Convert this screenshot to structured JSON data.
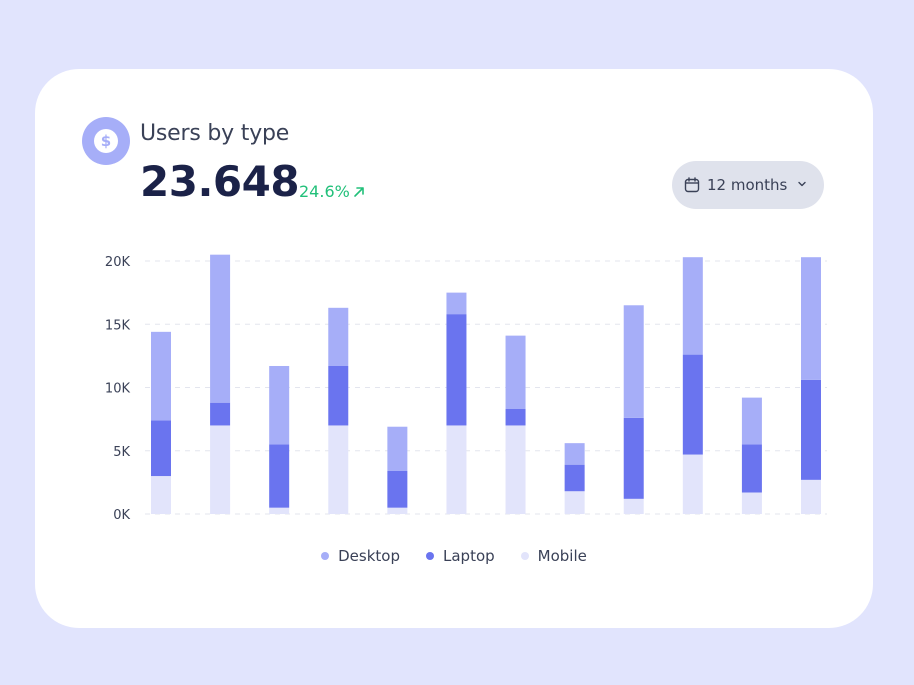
{
  "header": {
    "title": "Users by type",
    "total": "23.648",
    "change": "24.6%",
    "period": "12 months"
  },
  "colors": {
    "desktop": "#a6aef8",
    "laptop": "#6a74ef",
    "mobile": "#e2e4fb",
    "positive": "#22c07a",
    "text": "#3a4157",
    "heading": "#1b2248"
  },
  "icons": {
    "badge": "dollar-icon",
    "period": "calendar-icon",
    "dropdown": "chevron-down-icon",
    "trend": "arrow-up-right-icon"
  },
  "chart_data": {
    "type": "bar",
    "stacked": true,
    "ylim": [
      0,
      20000
    ],
    "yticks": [
      {
        "value": 0,
        "label": "0K"
      },
      {
        "value": 5000,
        "label": "5K"
      },
      {
        "value": 10000,
        "label": "10K"
      },
      {
        "value": 15000,
        "label": "15K"
      },
      {
        "value": 20000,
        "label": "20K"
      }
    ],
    "grid": true,
    "legend_position": "bottom",
    "series": [
      {
        "name": "Mobile",
        "color": "#e2e4fb",
        "values": [
          3000,
          7000,
          500,
          7000,
          500,
          7000,
          7000,
          1800,
          1200,
          4700,
          1700,
          2700
        ]
      },
      {
        "name": "Laptop",
        "color": "#6a74ef",
        "values": [
          4400,
          1800,
          5000,
          4700,
          2900,
          8800,
          1300,
          2100,
          6400,
          7900,
          3800,
          7900
        ]
      },
      {
        "name": "Desktop",
        "color": "#a6aef8",
        "values": [
          7000,
          11700,
          6200,
          4600,
          3500,
          1700,
          5800,
          1700,
          8900,
          7700,
          3700,
          9700
        ]
      }
    ],
    "legend": [
      "Desktop",
      "Laptop",
      "Mobile"
    ]
  }
}
